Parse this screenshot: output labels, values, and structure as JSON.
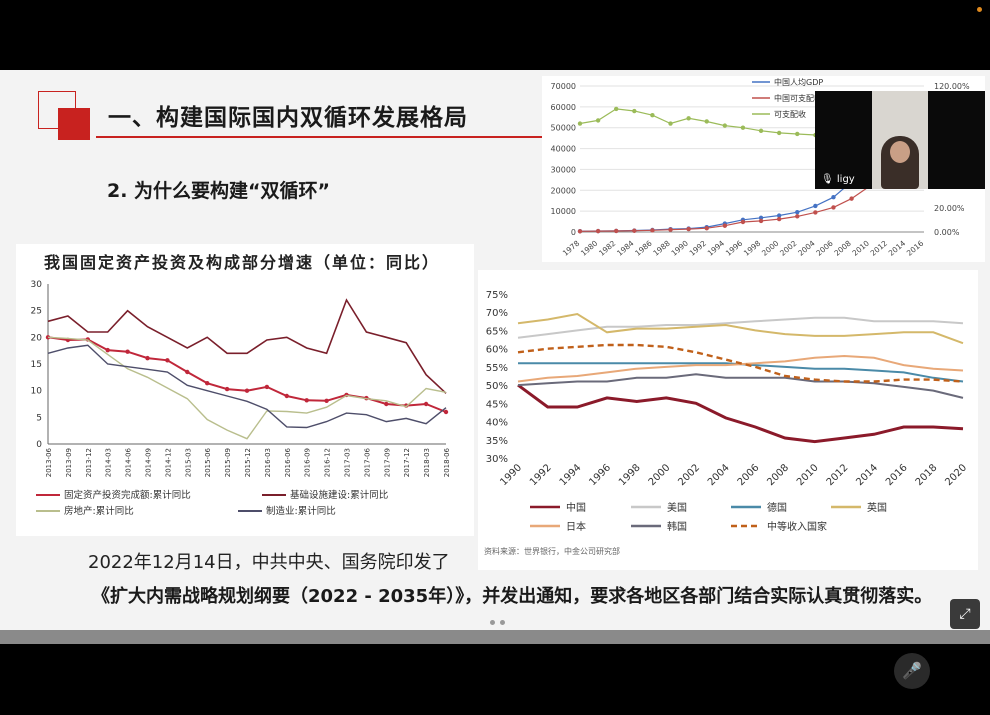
{
  "slide": {
    "title": "一、构建国际国内双循环发展格局",
    "subtitle": "2. 为什么要构建“双循环”",
    "body_line1": "2022年12月14日，中共中央、国务院印发了",
    "body_line2": "《扩大内需战略规划纲要（2022 - 2035年）》，并发出通知，要求各地区各部门结合实际认真贯彻落实。"
  },
  "video": {
    "participant_name": "ligy"
  },
  "icons": {
    "mic": "microphone-icon",
    "fullscreen": "fullscreen-icon"
  },
  "colors": {
    "accent": "#c8221f"
  },
  "chart_data": [
    {
      "type": "line",
      "title": "",
      "x": [
        "1978",
        "1980",
        "1982",
        "1984",
        "1986",
        "1988",
        "1990",
        "1992",
        "1994",
        "1996",
        "1998",
        "2000",
        "2002",
        "2004",
        "2006",
        "2008",
        "2010",
        "2012",
        "2014",
        "2016"
      ],
      "ylim_left": [
        0,
        70000
      ],
      "yticks_left": [
        "0",
        "10000",
        "20000",
        "30000",
        "40000",
        "50000",
        "60000",
        "70000"
      ],
      "yticks_right": [
        "0.00%",
        "20.00%",
        "120.00%"
      ],
      "legend": [
        "中国人均GDP",
        "中国可支配收入",
        "可支配收"
      ],
      "series": [
        {
          "name": "中国人均GDP",
          "color": "#4472c4",
          "values": [
            400,
            460,
            530,
            700,
            960,
            1370,
            1650,
            2330,
            4040,
            5850,
            6800,
            7900,
            9500,
            12500,
            16700,
            24100,
            30800,
            40000,
            null,
            null
          ]
        },
        {
          "name": "中国可支配收入",
          "color": "#c0504d",
          "values": [
            340,
            420,
            500,
            600,
            800,
            1100,
            1400,
            1800,
            3000,
            4800,
            5300,
            6200,
            7500,
            9400,
            11800,
            16000,
            22000,
            null,
            null,
            null
          ]
        },
        {
          "name": "可支配收",
          "color": "#9bbb59",
          "values": [
            52000,
            53500,
            59000,
            58000,
            56000,
            52000,
            54500,
            53000,
            51000,
            50000,
            48500,
            47500,
            47000,
            46500,
            46000,
            null,
            null,
            null,
            null,
            null
          ]
        }
      ]
    },
    {
      "type": "line",
      "title": "我国固定资产投资及构成部分增速（单位：同比）",
      "x": [
        "2013-06",
        "2013-09",
        "2013-12",
        "2014-03",
        "2014-06",
        "2014-09",
        "2014-12",
        "2015-03",
        "2015-06",
        "2015-09",
        "2015-12",
        "2016-03",
        "2016-06",
        "2016-09",
        "2016-12",
        "2017-03",
        "2017-06",
        "2017-09",
        "2017-12",
        "2018-03",
        "2018-06"
      ],
      "ylim": [
        0,
        30
      ],
      "yticks": [
        "0",
        "5",
        "10",
        "15",
        "20",
        "25",
        "30"
      ],
      "series": [
        {
          "name": "固定资产投资完成额:累计同比",
          "color": "#c0273a",
          "values": [
            20,
            19.5,
            19.6,
            17.6,
            17.3,
            16.1,
            15.7,
            13.5,
            11.4,
            10.3,
            10.0,
            10.7,
            9.0,
            8.2,
            8.1,
            9.2,
            8.6,
            7.5,
            7.2,
            7.5,
            6.0
          ]
        },
        {
          "name": "基础设施建设:累计同比",
          "color": "#7a1f2b",
          "values": [
            23,
            24,
            21,
            21,
            25,
            22,
            20,
            18,
            20,
            17,
            17,
            19.5,
            20,
            18,
            17,
            27,
            21,
            20,
            19,
            13,
            9.5
          ]
        },
        {
          "name": "房地产:累计同比",
          "color": "#b9be8d",
          "values": [
            20,
            19.8,
            19.5,
            16.8,
            14.1,
            12.5,
            10.5,
            8.5,
            4.6,
            2.6,
            1.0,
            6.2,
            6.1,
            5.8,
            6.9,
            9.1,
            8.5,
            8.1,
            7.0,
            10.4,
            9.7
          ]
        },
        {
          "name": "制造业:累计同比",
          "color": "#4e4e6a",
          "values": [
            17,
            18,
            18.5,
            15,
            14.5,
            14,
            13.5,
            11,
            10,
            9,
            8,
            6.5,
            3.2,
            3.1,
            4.2,
            5.8,
            5.5,
            4.2,
            4.8,
            3.8,
            6.8
          ]
        }
      ]
    },
    {
      "type": "line",
      "title": "",
      "x": [
        "1990",
        "1992",
        "1994",
        "1996",
        "1998",
        "2000",
        "2002",
        "2004",
        "2006",
        "2008",
        "2010",
        "2012",
        "2014",
        "2016",
        "2018",
        "2020"
      ],
      "ylim": [
        30,
        75
      ],
      "yticks": [
        "30%",
        "35%",
        "40%",
        "45%",
        "50%",
        "55%",
        "60%",
        "65%",
        "70%",
        "75%"
      ],
      "source_note": "资料来源：世界银行，中金公司研究部",
      "series": [
        {
          "name": "中国",
          "color": "#8b1a2a",
          "values": [
            50,
            44,
            44,
            46.5,
            45.5,
            46.5,
            45,
            41,
            38.5,
            35.5,
            34.5,
            35.5,
            36.5,
            38.5,
            38.5,
            38
          ]
        },
        {
          "name": "美国",
          "color": "#c8c8c8",
          "values": [
            63,
            64,
            65,
            66,
            66,
            66.5,
            66.5,
            67,
            67.5,
            68,
            68.5,
            68.5,
            67.5,
            67.5,
            67.5,
            67
          ]
        },
        {
          "name": "德国",
          "color": "#4a8aa8",
          "values": [
            56,
            56,
            56,
            56,
            56,
            56,
            56,
            56,
            55.5,
            55,
            54.5,
            54.5,
            54,
            53.5,
            52,
            51
          ]
        },
        {
          "name": "英国",
          "color": "#d4b86a",
          "values": [
            67,
            68,
            69.5,
            64.5,
            65.5,
            65.5,
            66,
            66.5,
            65,
            64,
            63.5,
            63.5,
            64,
            64.5,
            64.5,
            61.5
          ]
        },
        {
          "name": "日本",
          "color": "#e8a878",
          "values": [
            51,
            52,
            52.5,
            53.5,
            54.5,
            55,
            55.5,
            55.5,
            56,
            56.5,
            57.5,
            58,
            57.5,
            55.5,
            54.5,
            54
          ]
        },
        {
          "name": "韩国",
          "color": "#6a6a7a",
          "values": [
            50,
            50.5,
            51,
            51,
            52,
            52,
            53,
            52,
            52,
            52,
            51,
            51,
            50.5,
            49.5,
            48.5,
            46.5
          ]
        },
        {
          "name": "中等收入国家",
          "color": "#c0601a",
          "dashed": true,
          "values": [
            59,
            60,
            60.5,
            61,
            61,
            60.5,
            59,
            57,
            55,
            52.5,
            51.5,
            51,
            51,
            51.5,
            51.5,
            51
          ]
        }
      ]
    }
  ]
}
